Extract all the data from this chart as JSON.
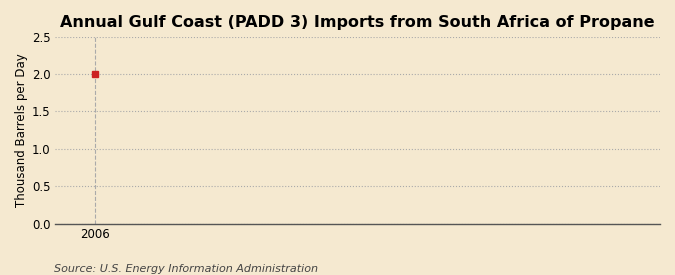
{
  "title": "Annual Gulf Coast (PADD 3) Imports from South Africa of Propane",
  "ylabel": "Thousand Barrels per Day",
  "source": "Source: U.S. Energy Information Administration",
  "x_data": [
    2006
  ],
  "y_data": [
    2.0
  ],
  "point_color": "#cc2222",
  "xlim": [
    2005.4,
    2014.5
  ],
  "ylim": [
    0.0,
    2.5
  ],
  "yticks": [
    0.0,
    0.5,
    1.0,
    1.5,
    2.0,
    2.5
  ],
  "xticks": [
    2006
  ],
  "background_color": "#f5e9d0",
  "plot_bg_color": "#f5e9d0",
  "grid_color": "#aaaaaa",
  "title_fontsize": 11.5,
  "label_fontsize": 8.5,
  "tick_fontsize": 8.5,
  "source_fontsize": 8
}
